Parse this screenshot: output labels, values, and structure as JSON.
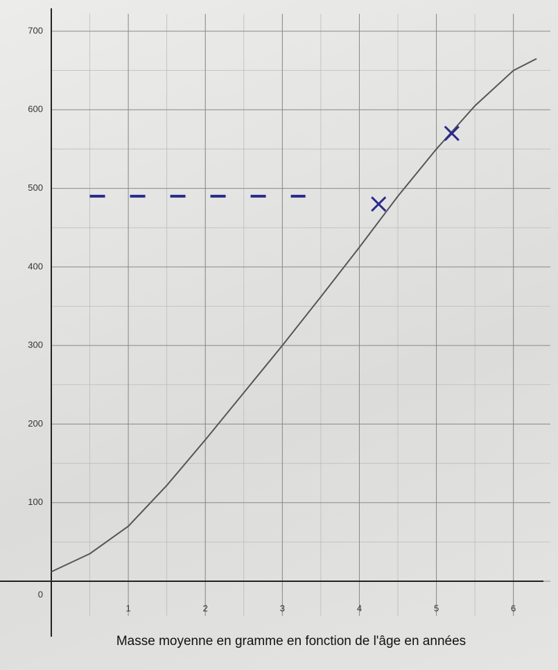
{
  "chart_data": {
    "type": "line",
    "xlabel": "Masse moyenne en gramme en fonction de l'âge en années",
    "x": [
      0,
      0.5,
      1,
      1.5,
      2,
      2.5,
      3,
      3.5,
      4,
      4.5,
      5,
      5.5,
      6,
      6.3
    ],
    "series": [
      {
        "color": "#555555",
        "values": [
          12,
          35,
          70,
          122,
          180,
          240,
          300,
          362,
          425,
          490,
          550,
          605,
          650,
          665
        ]
      }
    ],
    "xlim": [
      0,
      6.3
    ],
    "ylim": [
      0,
      700
    ],
    "xticks": [
      1,
      2,
      3,
      4,
      5,
      6
    ],
    "yticks": [
      0,
      100,
      200,
      300,
      400,
      500,
      600,
      700
    ],
    "grid": true,
    "handwritten": {
      "color": "#2a2a8c",
      "crosses": {
        "x": [
          4.25,
          5.2
        ],
        "y": [
          480,
          570
        ]
      },
      "dashed_line": {
        "x": [
          0.5,
          3.3
        ],
        "y": [
          490,
          490
        ]
      }
    }
  }
}
